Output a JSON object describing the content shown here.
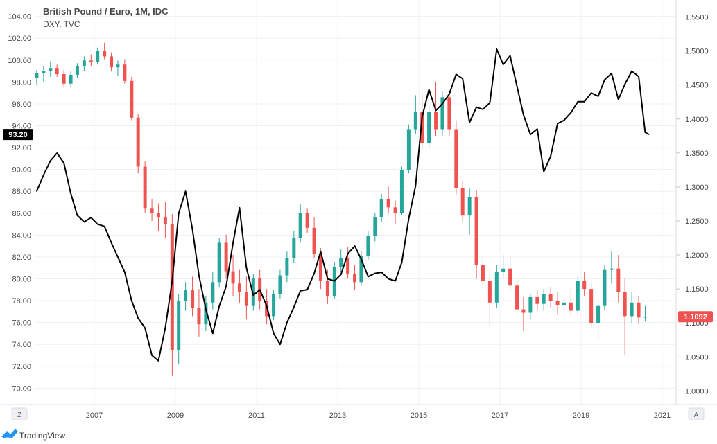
{
  "header": {
    "title": "British Pound / Euro, 1M, IDC",
    "overlay": "DXY, TVC"
  },
  "footer": {
    "brand": "TradingView",
    "left_button": "Z",
    "right_button": "A"
  },
  "colors": {
    "up": "#26a69a",
    "down": "#ef5350",
    "line": "#000000",
    "grid": "#eef1f5",
    "badge_left": "#000000",
    "badge_right": "#ef5350"
  },
  "chart_data": {
    "type": "candlestick",
    "title": "British Pound / Euro, 1M, IDC",
    "x_ticks": [
      "2007",
      "2009",
      "2011",
      "2013",
      "2015",
      "2017",
      "2019",
      "2021"
    ],
    "left_axis": {
      "label": "DXY, TVC",
      "ticks": [
        "70.00",
        "72.00",
        "74.00",
        "76.00",
        "78.00",
        "80.00",
        "82.00",
        "84.00",
        "86.00",
        "88.00",
        "90.00",
        "92.00",
        "94.00",
        "96.00",
        "98.00",
        "100.00",
        "102.00",
        "104.00"
      ],
      "range": [
        68.5,
        105.5
      ],
      "current": "93.20"
    },
    "right_axis": {
      "label": "British Pound / Euro",
      "ticks": [
        "1.0000",
        "1.0500",
        "1.1000",
        "1.1500",
        "1.2000",
        "1.2500",
        "1.3000",
        "1.3500",
        "1.4000",
        "1.4500",
        "1.5000",
        "1.5500"
      ],
      "range": [
        0.98,
        1.575
      ],
      "current": "1.1092"
    },
    "series": [
      {
        "name": "DXY, TVC",
        "kind": "line",
        "points": [
          [
            2005.58,
            88.0
          ],
          [
            2005.75,
            89.5
          ],
          [
            2005.92,
            90.8
          ],
          [
            2006.08,
            91.5
          ],
          [
            2006.25,
            90.6
          ],
          [
            2006.42,
            87.8
          ],
          [
            2006.58,
            85.8
          ],
          [
            2006.75,
            85.2
          ],
          [
            2006.92,
            85.6
          ],
          [
            2007.08,
            85.0
          ],
          [
            2007.25,
            84.8
          ],
          [
            2007.42,
            83.3
          ],
          [
            2007.58,
            82.0
          ],
          [
            2007.75,
            80.6
          ],
          [
            2007.92,
            78.0
          ],
          [
            2008.08,
            76.4
          ],
          [
            2008.25,
            75.5
          ],
          [
            2008.42,
            73.0
          ],
          [
            2008.58,
            72.5
          ],
          [
            2008.75,
            75.5
          ],
          [
            2008.92,
            79.8
          ],
          [
            2009.08,
            86.0
          ],
          [
            2009.25,
            88.0
          ],
          [
            2009.42,
            84.5
          ],
          [
            2009.58,
            80.3
          ],
          [
            2009.75,
            77.2
          ],
          [
            2009.92,
            75.0
          ],
          [
            2010.08,
            77.5
          ],
          [
            2010.25,
            79.3
          ],
          [
            2010.42,
            83.3
          ],
          [
            2010.58,
            86.5
          ],
          [
            2010.75,
            81.0
          ],
          [
            2010.92,
            78.5
          ],
          [
            2011.08,
            79.0
          ],
          [
            2011.25,
            77.5
          ],
          [
            2011.42,
            75.0
          ],
          [
            2011.58,
            74.0
          ],
          [
            2011.75,
            76.0
          ],
          [
            2011.92,
            77.4
          ],
          [
            2012.08,
            78.9
          ],
          [
            2012.25,
            79.0
          ],
          [
            2012.42,
            80.5
          ],
          [
            2012.58,
            82.5
          ],
          [
            2012.75,
            80.0
          ],
          [
            2012.92,
            79.8
          ],
          [
            2013.08,
            80.4
          ],
          [
            2013.25,
            82.3
          ],
          [
            2013.42,
            83.0
          ],
          [
            2013.58,
            81.8
          ],
          [
            2013.75,
            80.2
          ],
          [
            2013.92,
            80.5
          ],
          [
            2014.08,
            80.6
          ],
          [
            2014.25,
            80.0
          ],
          [
            2014.42,
            79.8
          ],
          [
            2014.58,
            81.5
          ],
          [
            2014.75,
            85.5
          ],
          [
            2014.92,
            88.5
          ],
          [
            2015.08,
            94.8
          ],
          [
            2015.25,
            97.3
          ],
          [
            2015.42,
            95.4
          ],
          [
            2015.58,
            96.0
          ],
          [
            2015.75,
            96.9
          ],
          [
            2015.92,
            98.7
          ],
          [
            2016.08,
            98.3
          ],
          [
            2016.25,
            94.3
          ],
          [
            2016.42,
            95.7
          ],
          [
            2016.58,
            95.5
          ],
          [
            2016.75,
            96.1
          ],
          [
            2016.92,
            101.0
          ],
          [
            2017.08,
            99.6
          ],
          [
            2017.25,
            100.4
          ],
          [
            2017.42,
            97.6
          ],
          [
            2017.58,
            95.0
          ],
          [
            2017.75,
            93.2
          ],
          [
            2017.92,
            93.7
          ],
          [
            2018.08,
            89.8
          ],
          [
            2018.25,
            91.2
          ],
          [
            2018.42,
            94.2
          ],
          [
            2018.58,
            94.5
          ],
          [
            2018.75,
            95.2
          ],
          [
            2018.92,
            96.2
          ],
          [
            2019.08,
            96.2
          ],
          [
            2019.25,
            97.0
          ],
          [
            2019.42,
            96.7
          ],
          [
            2019.58,
            98.2
          ],
          [
            2019.75,
            98.8
          ],
          [
            2019.92,
            96.4
          ],
          [
            2020.08,
            97.8
          ],
          [
            2020.25,
            99.0
          ],
          [
            2020.42,
            98.5
          ],
          [
            2020.58,
            93.4
          ],
          [
            2020.67,
            93.2
          ]
        ]
      },
      {
        "name": "British Pound / Euro",
        "kind": "candles",
        "candles": [
          [
            2005.58,
            1.46,
            1.472,
            1.45,
            1.468
          ],
          [
            2005.75,
            1.468,
            1.478,
            1.455,
            1.47
          ],
          [
            2005.92,
            1.47,
            1.485,
            1.462,
            1.475
          ],
          [
            2006.08,
            1.475,
            1.48,
            1.462,
            1.466
          ],
          [
            2006.25,
            1.466,
            1.472,
            1.448,
            1.452
          ],
          [
            2006.42,
            1.452,
            1.47,
            1.448,
            1.465
          ],
          [
            2006.58,
            1.465,
            1.482,
            1.46,
            1.478
          ],
          [
            2006.75,
            1.478,
            1.492,
            1.47,
            1.486
          ],
          [
            2006.92,
            1.486,
            1.495,
            1.478,
            1.484
          ],
          [
            2007.08,
            1.484,
            1.505,
            1.48,
            1.5
          ],
          [
            2007.25,
            1.5,
            1.512,
            1.488,
            1.492
          ],
          [
            2007.42,
            1.492,
            1.498,
            1.47,
            1.476
          ],
          [
            2007.58,
            1.476,
            1.486,
            1.464,
            1.48
          ],
          [
            2007.75,
            1.48,
            1.488,
            1.452,
            1.456
          ],
          [
            2007.92,
            1.456,
            1.462,
            1.398,
            1.402
          ],
          [
            2008.08,
            1.402,
            1.408,
            1.32,
            1.33
          ],
          [
            2008.25,
            1.33,
            1.338,
            1.262,
            1.268
          ],
          [
            2008.42,
            1.268,
            1.282,
            1.25,
            1.262
          ],
          [
            2008.58,
            1.262,
            1.276,
            1.235,
            1.255
          ],
          [
            2008.75,
            1.255,
            1.278,
            1.225,
            1.245
          ],
          [
            2008.92,
            1.245,
            1.26,
            1.022,
            1.06
          ],
          [
            2009.08,
            1.06,
            1.142,
            1.04,
            1.132
          ],
          [
            2009.25,
            1.132,
            1.16,
            1.118,
            1.148
          ],
          [
            2009.42,
            1.148,
            1.168,
            1.11,
            1.122
          ],
          [
            2009.58,
            1.122,
            1.15,
            1.08,
            1.098
          ],
          [
            2009.75,
            1.098,
            1.14,
            1.088,
            1.13
          ],
          [
            2009.92,
            1.13,
            1.175,
            1.12,
            1.16
          ],
          [
            2010.08,
            1.16,
            1.225,
            1.152,
            1.218
          ],
          [
            2010.25,
            1.218,
            1.23,
            1.165,
            1.176
          ],
          [
            2010.42,
            1.176,
            1.2,
            1.14,
            1.158
          ],
          [
            2010.58,
            1.158,
            1.178,
            1.13,
            1.146
          ],
          [
            2010.75,
            1.146,
            1.168,
            1.105,
            1.125
          ],
          [
            2010.92,
            1.125,
            1.172,
            1.118,
            1.166
          ],
          [
            2011.08,
            1.166,
            1.178,
            1.12,
            1.132
          ],
          [
            2011.25,
            1.132,
            1.15,
            1.098,
            1.11
          ],
          [
            2011.42,
            1.11,
            1.148,
            1.104,
            1.142
          ],
          [
            2011.58,
            1.142,
            1.178,
            1.136,
            1.17
          ],
          [
            2011.75,
            1.17,
            1.205,
            1.16,
            1.195
          ],
          [
            2011.92,
            1.195,
            1.235,
            1.188,
            1.225
          ],
          [
            2012.08,
            1.225,
            1.275,
            1.218,
            1.262
          ],
          [
            2012.25,
            1.262,
            1.268,
            1.232,
            1.24
          ],
          [
            2012.42,
            1.24,
            1.255,
            1.195,
            1.202
          ],
          [
            2012.58,
            1.202,
            1.21,
            1.15,
            1.162
          ],
          [
            2012.75,
            1.162,
            1.178,
            1.128,
            1.14
          ],
          [
            2012.92,
            1.14,
            1.19,
            1.135,
            1.182
          ],
          [
            2013.08,
            1.182,
            1.208,
            1.175,
            1.195
          ],
          [
            2013.25,
            1.195,
            1.212,
            1.165,
            1.172
          ],
          [
            2013.42,
            1.172,
            1.185,
            1.148,
            1.16
          ],
          [
            2013.58,
            1.16,
            1.205,
            1.155,
            1.198
          ],
          [
            2013.75,
            1.198,
            1.235,
            1.192,
            1.228
          ],
          [
            2013.92,
            1.228,
            1.262,
            1.22,
            1.255
          ],
          [
            2014.08,
            1.255,
            1.29,
            1.248,
            1.282
          ],
          [
            2014.25,
            1.282,
            1.3,
            1.262,
            1.27
          ],
          [
            2014.42,
            1.27,
            1.28,
            1.245,
            1.262
          ],
          [
            2014.58,
            1.262,
            1.33,
            1.258,
            1.325
          ],
          [
            2014.75,
            1.325,
            1.392,
            1.32,
            1.385
          ],
          [
            2014.92,
            1.385,
            1.435,
            1.378,
            1.41
          ],
          [
            2015.08,
            1.41,
            1.438,
            1.355,
            1.365
          ],
          [
            2015.25,
            1.365,
            1.42,
            1.358,
            1.41
          ],
          [
            2015.42,
            1.41,
            1.455,
            1.375,
            1.385
          ],
          [
            2015.58,
            1.385,
            1.44,
            1.375,
            1.432
          ],
          [
            2015.75,
            1.432,
            1.442,
            1.375,
            1.385
          ],
          [
            2015.92,
            1.385,
            1.398,
            1.288,
            1.298
          ],
          [
            2016.08,
            1.298,
            1.308,
            1.248,
            1.258
          ],
          [
            2016.25,
            1.258,
            1.298,
            1.23,
            1.285
          ],
          [
            2016.42,
            1.285,
            1.295,
            1.165,
            1.185
          ],
          [
            2016.58,
            1.185,
            1.2,
            1.15,
            1.162
          ],
          [
            2016.75,
            1.162,
            1.178,
            1.095,
            1.13
          ],
          [
            2016.92,
            1.13,
            1.185,
            1.122,
            1.175
          ],
          [
            2017.08,
            1.175,
            1.2,
            1.165,
            1.18
          ],
          [
            2017.25,
            1.18,
            1.198,
            1.148,
            1.155
          ],
          [
            2017.42,
            1.155,
            1.168,
            1.11,
            1.12
          ],
          [
            2017.58,
            1.12,
            1.138,
            1.088,
            1.115
          ],
          [
            2017.75,
            1.115,
            1.142,
            1.105,
            1.138
          ],
          [
            2017.92,
            1.138,
            1.148,
            1.118,
            1.128
          ],
          [
            2018.08,
            1.128,
            1.15,
            1.118,
            1.142
          ],
          [
            2018.25,
            1.142,
            1.152,
            1.122,
            1.132
          ],
          [
            2018.42,
            1.132,
            1.146,
            1.112,
            1.126
          ],
          [
            2018.58,
            1.126,
            1.142,
            1.108,
            1.13
          ],
          [
            2018.75,
            1.13,
            1.15,
            1.11,
            1.118
          ],
          [
            2018.92,
            1.118,
            1.17,
            1.112,
            1.162
          ],
          [
            2019.08,
            1.162,
            1.175,
            1.14,
            1.15
          ],
          [
            2019.25,
            1.15,
            1.158,
            1.092,
            1.1
          ],
          [
            2019.42,
            1.1,
            1.132,
            1.075,
            1.125
          ],
          [
            2019.58,
            1.125,
            1.185,
            1.118,
            1.178
          ],
          [
            2019.75,
            1.178,
            1.205,
            1.158,
            1.18
          ],
          [
            2019.92,
            1.18,
            1.2,
            1.13,
            1.146
          ],
          [
            2020.08,
            1.146,
            1.165,
            1.052,
            1.11
          ],
          [
            2020.25,
            1.11,
            1.145,
            1.1,
            1.13
          ],
          [
            2020.42,
            1.13,
            1.14,
            1.098,
            1.108
          ],
          [
            2020.58,
            1.108,
            1.125,
            1.102,
            1.109
          ]
        ]
      }
    ],
    "grid": true
  }
}
